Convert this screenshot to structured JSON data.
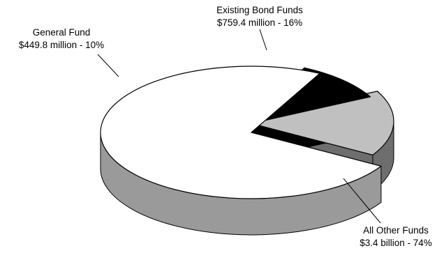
{
  "chart_data": {
    "type": "pie",
    "style": "3d-exploded",
    "slices": [
      {
        "name": "All Other Funds",
        "value_label": "$3.4 billion - 74%",
        "percent": 74,
        "amount": 3.4,
        "unit": "billion",
        "color": "#ffffff",
        "side_color": "#9a9a9a"
      },
      {
        "name": "Existing Bond Funds",
        "value_label": "$759.4  million - 16%",
        "percent": 16,
        "amount": 759.4,
        "unit": "million",
        "color": "#c0c0c0",
        "side_color": "#6e6e6e"
      },
      {
        "name": "General Fund",
        "value_label": "$449.8 million - 10%",
        "percent": 10,
        "amount": 449.8,
        "unit": "million",
        "color": "#000000",
        "side_color": "#000000"
      }
    ]
  }
}
